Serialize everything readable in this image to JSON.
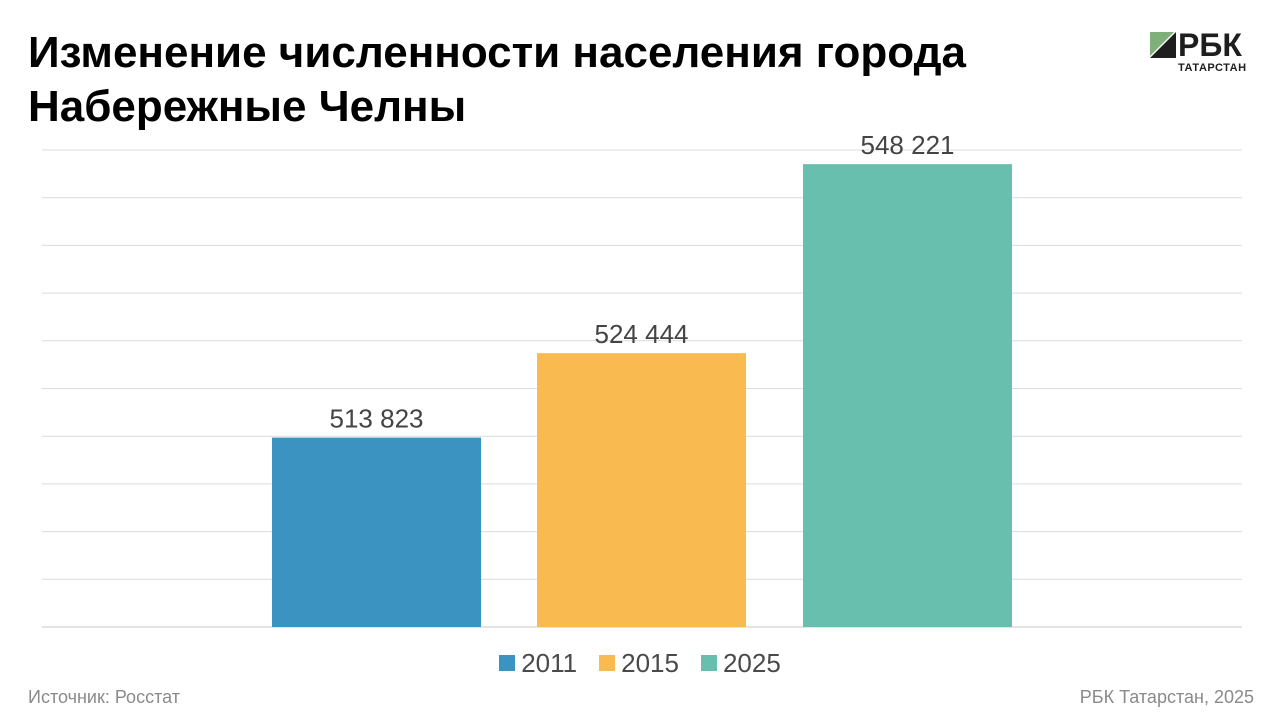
{
  "header": {
    "title": "Изменение численности населения города Набережные Челны"
  },
  "logo": {
    "word": "РБК",
    "sub": "ТАТАРСТАН"
  },
  "footer": {
    "source": "Источник: Росстат",
    "credit": "РБК Татарстан, 2025"
  },
  "colors": {
    "2011": "#3a93c1",
    "2015": "#f9bb4f",
    "2025": "#69bfae",
    "grid": "#dcdcdc",
    "label": "#444444"
  },
  "chart_data": {
    "type": "bar",
    "title": "Изменение численности населения города Набережные Челны",
    "xlabel": "",
    "ylabel": "",
    "ylim": [
      490000,
      550000
    ],
    "grid": true,
    "legend_placement": "bottom-center",
    "series": [
      {
        "name": "2011",
        "value": 513823,
        "label": "513 823",
        "color": "#3a93c1"
      },
      {
        "name": "2015",
        "value": 524444,
        "label": "524 444",
        "color": "#f9bb4f"
      },
      {
        "name": "2025",
        "value": 548221,
        "label": "548 221",
        "color": "#69bfae"
      }
    ]
  }
}
